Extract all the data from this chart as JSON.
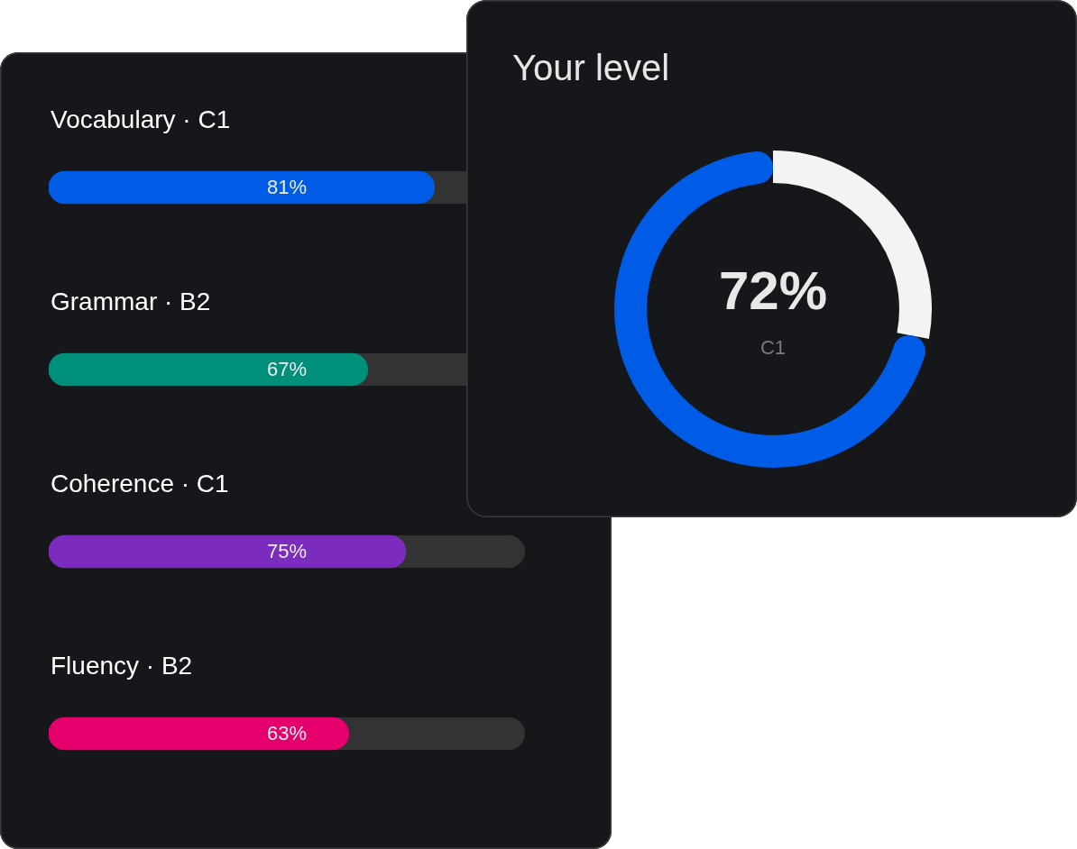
{
  "chart_data": [
    {
      "type": "bar",
      "orientation": "horizontal",
      "categories": [
        "Vocabulary · C1",
        "Grammar · B2",
        "Coherence · C1",
        "Fluency · B2"
      ],
      "values": [
        81,
        67,
        75,
        63
      ],
      "colors": [
        "#005ce6",
        "#008f7a",
        "#7b2bbd",
        "#e6006e"
      ],
      "xlim": [
        0,
        100
      ],
      "value_labels": [
        "81%",
        "67%",
        "75%",
        "63%"
      ],
      "tick_labels": "y"
    },
    {
      "type": "donut",
      "title": "Your level",
      "categories": [
        null,
        null
      ],
      "values": [
        28,
        72
      ],
      "colors": [
        "#f3f3f3",
        "#005ce6"
      ],
      "value_labels": [
        null,
        "72%"
      ],
      "annotations": [
        "C1"
      ]
    }
  ]
}
